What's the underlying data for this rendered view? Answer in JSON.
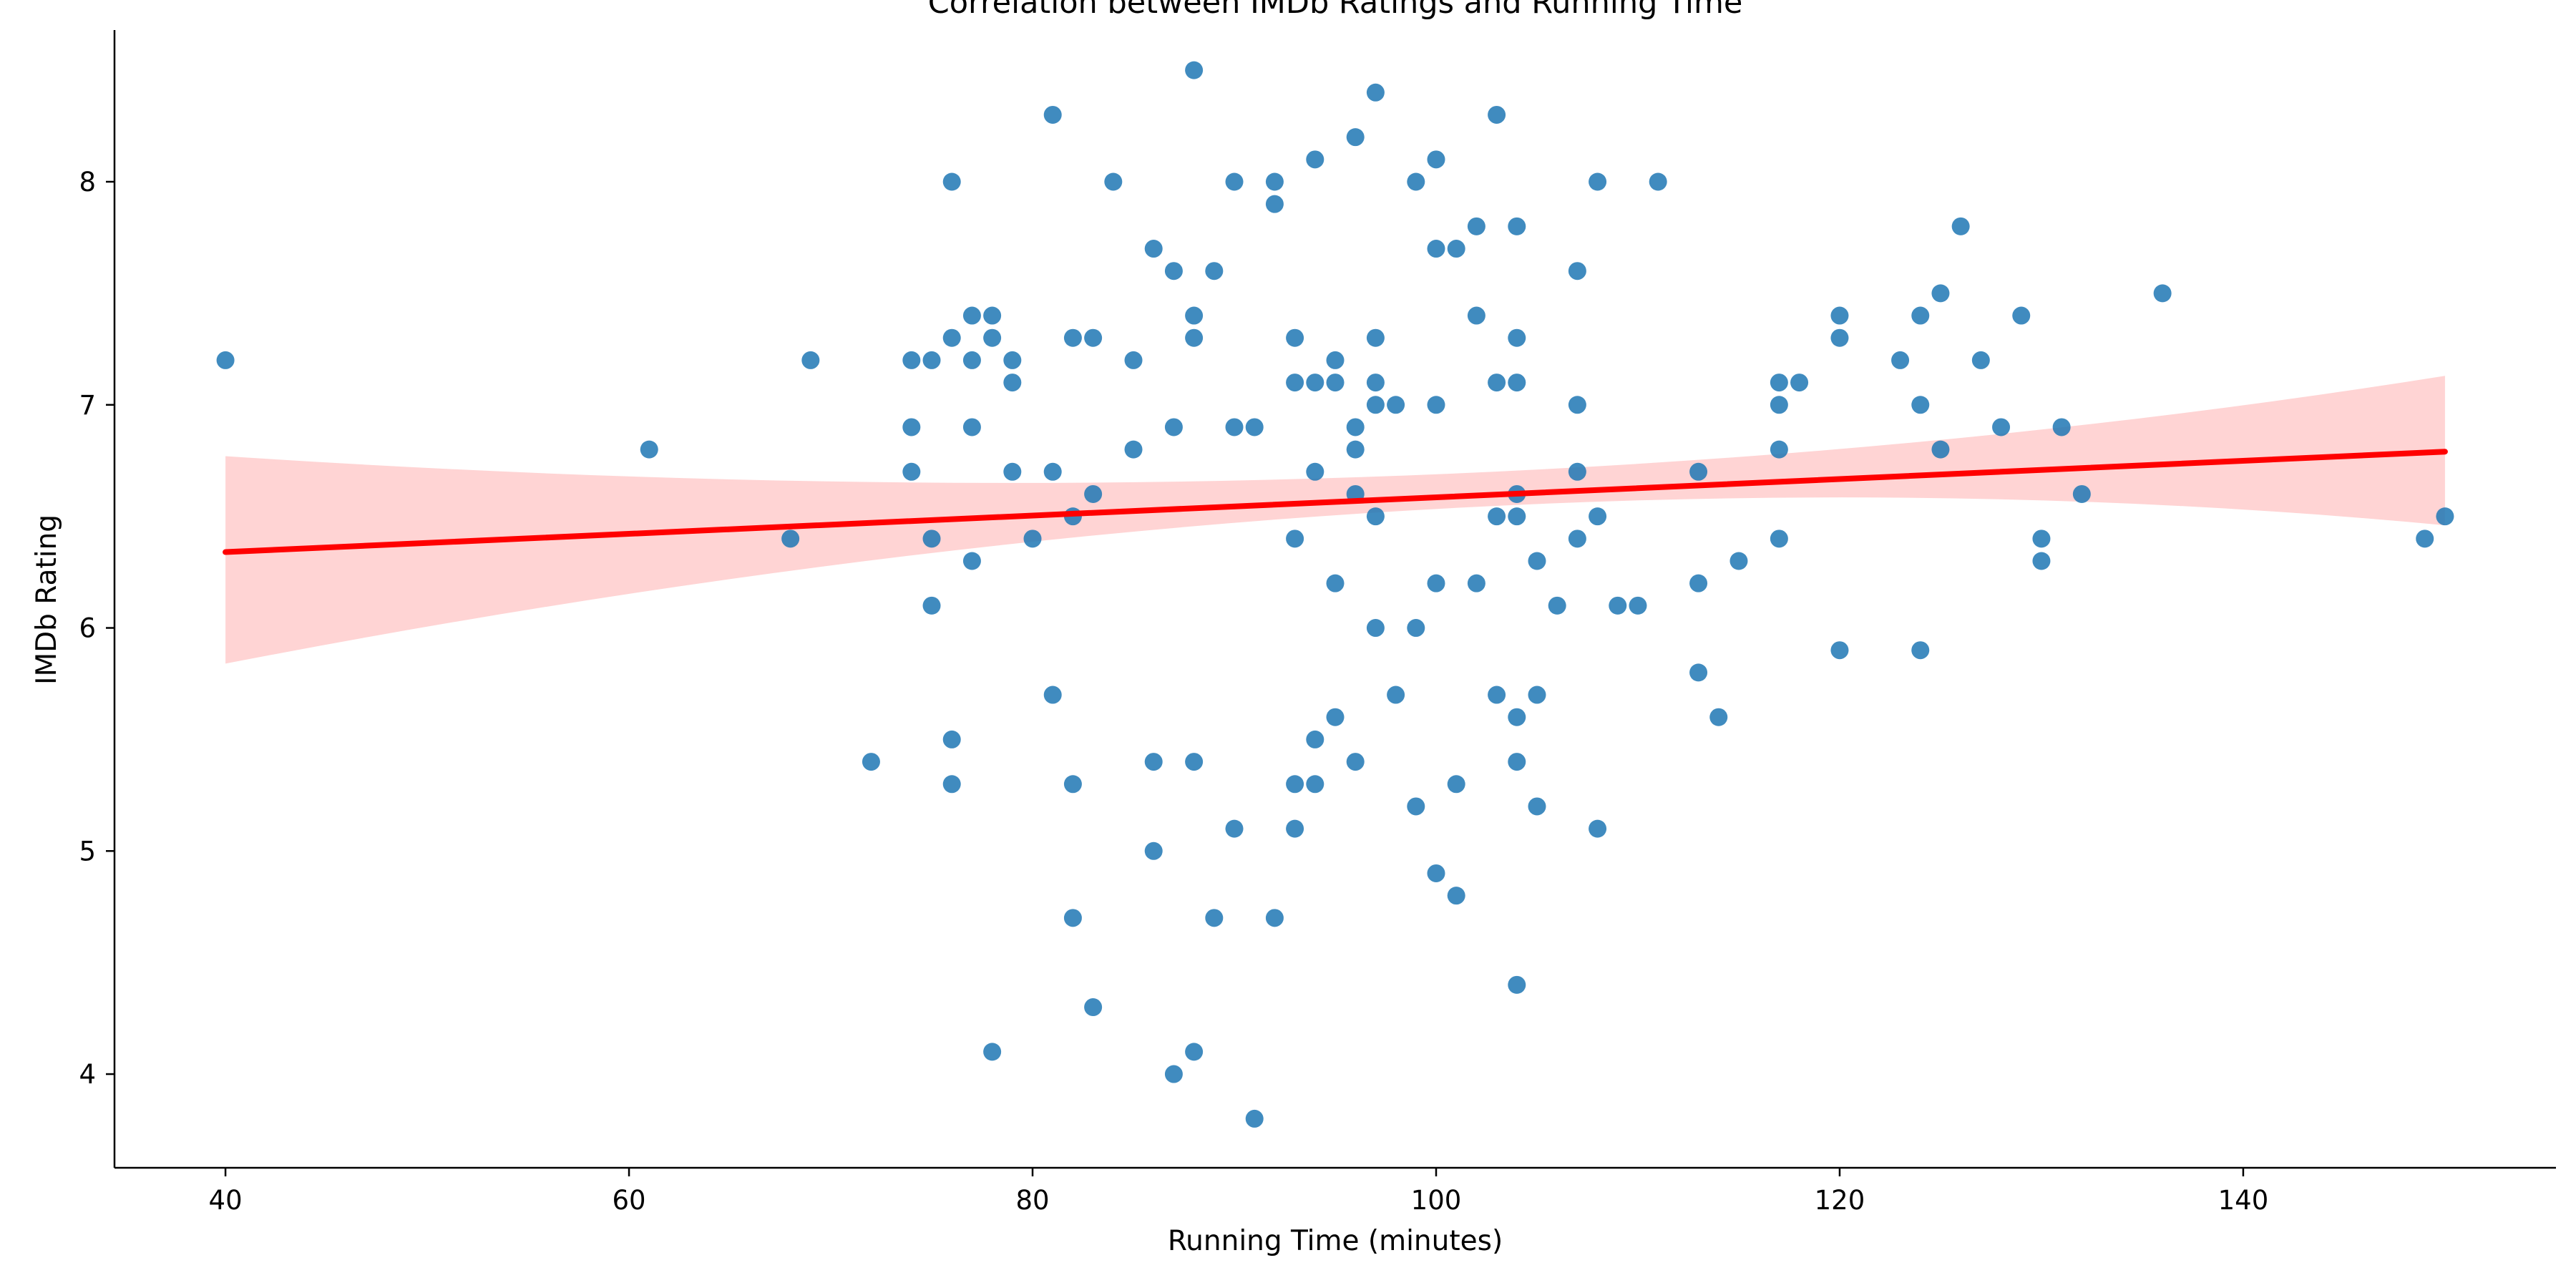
{
  "chart_data": {
    "type": "scatter",
    "title": "Correlation between IMDb Ratings and Running Time",
    "xlabel": "Running Time (minutes)",
    "ylabel": "IMDb Rating",
    "xlim": [
      34.5,
      155.5
    ],
    "ylim": [
      3.58,
      8.68
    ],
    "xticks": [
      40,
      60,
      80,
      100,
      120,
      140
    ],
    "yticks": [
      4,
      5,
      6,
      7,
      8
    ],
    "grid": false,
    "colors": {
      "points": "#1f77b4",
      "regression_line": "#ff0000",
      "confidence_band": "#ffcccc"
    },
    "regression": {
      "x": [
        40,
        150
      ],
      "y": [
        6.34,
        6.79
      ],
      "band_upper": [
        6.77,
        7.13
      ],
      "band_lower": [
        5.84,
        6.46
      ],
      "band_mid_x": 100,
      "band_mid_upper": 6.68,
      "band_mid_lower": 6.52
    },
    "points": [
      [
        40,
        7.2
      ],
      [
        61,
        6.8
      ],
      [
        68,
        6.4
      ],
      [
        69,
        7.2
      ],
      [
        72,
        5.4
      ],
      [
        74,
        7.2
      ],
      [
        74,
        6.9
      ],
      [
        74,
        6.7
      ],
      [
        75,
        7.2
      ],
      [
        75,
        6.4
      ],
      [
        75,
        6.1
      ],
      [
        76,
        8.0
      ],
      [
        76,
        7.3
      ],
      [
        76,
        5.5
      ],
      [
        76,
        5.3
      ],
      [
        77,
        7.4
      ],
      [
        77,
        7.2
      ],
      [
        77,
        6.9
      ],
      [
        77,
        6.3
      ],
      [
        78,
        7.4
      ],
      [
        78,
        7.3
      ],
      [
        78,
        4.1
      ],
      [
        79,
        7.2
      ],
      [
        79,
        7.1
      ],
      [
        79,
        6.7
      ],
      [
        80,
        6.4
      ],
      [
        81,
        8.3
      ],
      [
        81,
        6.7
      ],
      [
        81,
        5.7
      ],
      [
        82,
        7.3
      ],
      [
        82,
        6.5
      ],
      [
        82,
        5.3
      ],
      [
        82,
        4.7
      ],
      [
        83,
        7.3
      ],
      [
        83,
        6.6
      ],
      [
        83,
        4.3
      ],
      [
        84,
        8.0
      ],
      [
        85,
        7.2
      ],
      [
        85,
        6.8
      ],
      [
        86,
        7.7
      ],
      [
        86,
        5.4
      ],
      [
        86,
        5.0
      ],
      [
        87,
        7.6
      ],
      [
        87,
        6.9
      ],
      [
        87,
        4.0
      ],
      [
        88,
        8.5
      ],
      [
        88,
        7.4
      ],
      [
        88,
        7.3
      ],
      [
        88,
        5.4
      ],
      [
        88,
        4.1
      ],
      [
        89,
        7.6
      ],
      [
        89,
        4.7
      ],
      [
        90,
        8.0
      ],
      [
        90,
        6.9
      ],
      [
        90,
        5.1
      ],
      [
        91,
        6.9
      ],
      [
        91,
        3.8
      ],
      [
        92,
        8.0
      ],
      [
        92,
        7.9
      ],
      [
        92,
        4.7
      ],
      [
        93,
        7.3
      ],
      [
        93,
        7.1
      ],
      [
        93,
        6.4
      ],
      [
        93,
        5.3
      ],
      [
        93,
        5.1
      ],
      [
        94,
        8.1
      ],
      [
        94,
        7.1
      ],
      [
        94,
        6.7
      ],
      [
        94,
        5.5
      ],
      [
        94,
        5.3
      ],
      [
        95,
        7.2
      ],
      [
        95,
        7.1
      ],
      [
        95,
        6.2
      ],
      [
        95,
        5.6
      ],
      [
        96,
        8.2
      ],
      [
        96,
        6.9
      ],
      [
        96,
        6.8
      ],
      [
        96,
        6.6
      ],
      [
        96,
        5.4
      ],
      [
        97,
        8.4
      ],
      [
        97,
        7.3
      ],
      [
        97,
        7.1
      ],
      [
        97,
        7.0
      ],
      [
        97,
        6.5
      ],
      [
        97,
        6.0
      ],
      [
        98,
        7.0
      ],
      [
        98,
        5.7
      ],
      [
        99,
        8.0
      ],
      [
        99,
        6.0
      ],
      [
        99,
        5.2
      ],
      [
        100,
        8.1
      ],
      [
        100,
        7.7
      ],
      [
        100,
        7.0
      ],
      [
        100,
        6.2
      ],
      [
        100,
        4.9
      ],
      [
        101,
        7.7
      ],
      [
        101,
        5.3
      ],
      [
        101,
        4.8
      ],
      [
        102,
        7.8
      ],
      [
        102,
        7.4
      ],
      [
        102,
        6.2
      ],
      [
        103,
        8.3
      ],
      [
        103,
        7.1
      ],
      [
        103,
        6.5
      ],
      [
        103,
        5.7
      ],
      [
        104,
        7.8
      ],
      [
        104,
        7.3
      ],
      [
        104,
        7.1
      ],
      [
        104,
        6.6
      ],
      [
        104,
        6.5
      ],
      [
        104,
        5.6
      ],
      [
        104,
        5.4
      ],
      [
        104,
        4.4
      ],
      [
        105,
        6.3
      ],
      [
        105,
        5.7
      ],
      [
        105,
        5.2
      ],
      [
        106,
        6.1
      ],
      [
        107,
        7.6
      ],
      [
        107,
        7.0
      ],
      [
        107,
        6.7
      ],
      [
        107,
        6.4
      ],
      [
        108,
        8.0
      ],
      [
        108,
        6.5
      ],
      [
        108,
        5.1
      ],
      [
        109,
        6.1
      ],
      [
        110,
        6.1
      ],
      [
        111,
        8.0
      ],
      [
        113,
        6.7
      ],
      [
        113,
        6.2
      ],
      [
        113,
        5.8
      ],
      [
        114,
        5.6
      ],
      [
        115,
        6.3
      ],
      [
        117,
        7.1
      ],
      [
        117,
        7.0
      ],
      [
        117,
        6.8
      ],
      [
        117,
        6.4
      ],
      [
        118,
        7.1
      ],
      [
        120,
        7.4
      ],
      [
        120,
        7.3
      ],
      [
        120,
        5.9
      ],
      [
        123,
        7.2
      ],
      [
        124,
        7.4
      ],
      [
        124,
        7.0
      ],
      [
        124,
        5.9
      ],
      [
        125,
        7.5
      ],
      [
        125,
        6.8
      ],
      [
        126,
        7.8
      ],
      [
        127,
        7.2
      ],
      [
        128,
        6.9
      ],
      [
        129,
        7.4
      ],
      [
        130,
        6.4
      ],
      [
        130,
        6.3
      ],
      [
        131,
        6.9
      ],
      [
        132,
        6.6
      ],
      [
        136,
        7.5
      ],
      [
        149,
        6.4
      ],
      [
        150,
        6.5
      ]
    ]
  }
}
